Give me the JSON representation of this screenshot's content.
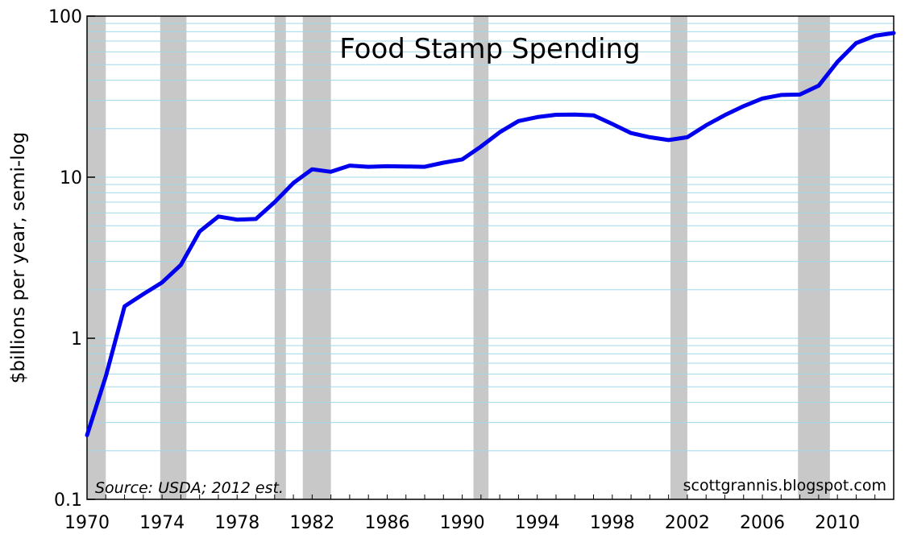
{
  "chart_data": {
    "type": "line",
    "title": "Food Stamp Spending",
    "ylabel": "$billions per year, semi-log",
    "xlabel": "",
    "y_scale": "log",
    "ylim": [
      0.1,
      100
    ],
    "xlim": [
      1970,
      2013
    ],
    "y_ticks": [
      {
        "value": 0.1,
        "label": "0.1"
      },
      {
        "value": 1,
        "label": "1"
      },
      {
        "value": 10,
        "label": "10"
      },
      {
        "value": 100,
        "label": "100"
      }
    ],
    "x_ticks": [
      {
        "value": 1970,
        "label": "1970"
      },
      {
        "value": 1974,
        "label": "1974"
      },
      {
        "value": 1978,
        "label": "1978"
      },
      {
        "value": 1982,
        "label": "1982"
      },
      {
        "value": 1986,
        "label": "1986"
      },
      {
        "value": 1990,
        "label": "1990"
      },
      {
        "value": 1994,
        "label": "1994"
      },
      {
        "value": 1998,
        "label": "1998"
      },
      {
        "value": 2002,
        "label": "2002"
      },
      {
        "value": 2006,
        "label": "2006"
      },
      {
        "value": 2010,
        "label": "2010"
      }
    ],
    "grid": true,
    "grid_color": "#9fd8ea",
    "series_color": "#0000ee",
    "shading_color": "#c8c8c8",
    "recessions": [
      [
        1970.0,
        1971.0
      ],
      [
        1973.9,
        1975.3
      ],
      [
        1980.0,
        1980.6
      ],
      [
        1981.5,
        1983.0
      ],
      [
        1990.6,
        1991.4
      ],
      [
        2001.1,
        2002.0
      ],
      [
        2007.9,
        2009.6
      ]
    ],
    "series": [
      {
        "x": [
          1970,
          1971,
          1972,
          1973,
          1974,
          1975,
          1976,
          1977,
          1978,
          1979,
          1980,
          1981,
          1982,
          1983,
          1984,
          1985,
          1986,
          1987,
          1988,
          1989,
          1990,
          1991,
          1992,
          1993,
          1994,
          1995,
          1996,
          1997,
          1998,
          1999,
          2000,
          2001,
          2002,
          2003,
          2004,
          2005,
          2006,
          2007,
          2008,
          2009,
          2010,
          2011,
          2012,
          2013
        ],
        "y": [
          0.25,
          0.58,
          1.58,
          1.88,
          2.22,
          2.85,
          4.6,
          5.7,
          5.45,
          5.5,
          7.0,
          9.2,
          11.2,
          10.8,
          11.8,
          11.6,
          11.7,
          11.65,
          11.6,
          12.3,
          12.9,
          15.5,
          19.0,
          22.3,
          23.6,
          24.4,
          24.5,
          24.2,
          21.4,
          18.8,
          17.7,
          17.0,
          17.7,
          21.0,
          24.3,
          27.6,
          30.8,
          32.4,
          32.6,
          37.0,
          52.0,
          68.0,
          75.5,
          78.5
        ]
      }
    ],
    "annotations": {
      "source": "Source: USDA; 2012 est.",
      "credit": "scottgrannis.blogspot.com"
    }
  }
}
